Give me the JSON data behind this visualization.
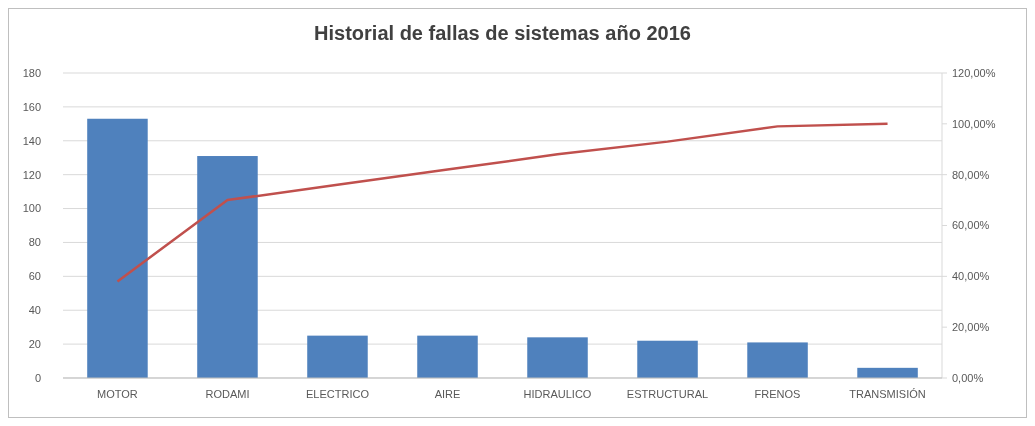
{
  "chart_data": {
    "type": "bar",
    "title": "Historial de fallas de sistemas año 2016",
    "categories": [
      "MOTOR",
      "RODAMI",
      "ELECTRICO",
      "AIRE",
      "HIDRAULICO",
      "ESTRUCTURAL",
      "FRENOS",
      "TRANSMISIÓN"
    ],
    "series": [
      {
        "color": "#4f81bd",
        "values": [
          153,
          131,
          25,
          25,
          24,
          22,
          21,
          6
        ]
      },
      {
        "type": "line",
        "axis": "y2",
        "color": "#c0504d",
        "values": [
          38,
          70,
          76,
          82,
          88,
          93,
          99,
          100
        ]
      }
    ],
    "ylim": [
      0,
      180
    ],
    "yticks": [
      0,
      20,
      40,
      60,
      80,
      100,
      120,
      140,
      160,
      180
    ],
    "y2lim": [
      0,
      120
    ],
    "y2ticks": [
      {
        "value": 0,
        "label": "0,00%"
      },
      {
        "value": 20,
        "label": "20,00%"
      },
      {
        "value": 40,
        "label": "40,00%"
      },
      {
        "value": 60,
        "label": "60,00%"
      },
      {
        "value": 80,
        "label": "80,00%"
      },
      {
        "value": 100,
        "label": "100,00%"
      },
      {
        "value": 120,
        "label": "120,00%"
      }
    ],
    "grid": "y"
  }
}
